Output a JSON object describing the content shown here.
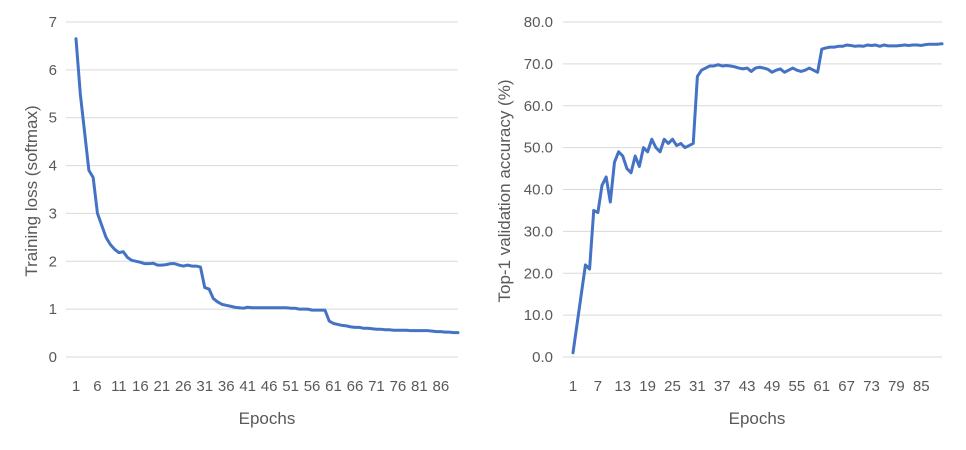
{
  "chart_data": [
    {
      "type": "line",
      "title": "",
      "xlabel": "Epochs",
      "ylabel": "Training loss (softmax)",
      "ylim": [
        0,
        7
      ],
      "yticks": [
        "0",
        "1",
        "2",
        "3",
        "4",
        "5",
        "6",
        "7"
      ],
      "xticks": [
        "1",
        "6",
        "11",
        "16",
        "21",
        "26",
        "31",
        "36",
        "41",
        "46",
        "51",
        "56",
        "61",
        "66",
        "71",
        "76",
        "81",
        "86"
      ],
      "grid": true,
      "series_color": "#4472c4",
      "x": [
        1,
        2,
        3,
        4,
        5,
        6,
        7,
        8,
        9,
        10,
        11,
        12,
        13,
        14,
        15,
        16,
        17,
        18,
        19,
        20,
        21,
        22,
        23,
        24,
        25,
        26,
        27,
        28,
        29,
        30,
        31,
        32,
        33,
        34,
        35,
        36,
        37,
        38,
        39,
        40,
        41,
        42,
        43,
        44,
        45,
        46,
        47,
        48,
        49,
        50,
        51,
        52,
        53,
        54,
        55,
        56,
        57,
        58,
        59,
        60,
        61,
        62,
        63,
        64,
        65,
        66,
        67,
        68,
        69,
        70,
        71,
        72,
        73,
        74,
        75,
        76,
        77,
        78,
        79,
        80,
        81,
        82,
        83,
        84,
        85,
        86,
        87,
        88,
        89,
        90
      ],
      "values": [
        6.65,
        5.5,
        4.7,
        3.9,
        3.75,
        3.0,
        2.75,
        2.5,
        2.35,
        2.25,
        2.18,
        2.2,
        2.08,
        2.02,
        2.0,
        1.98,
        1.95,
        1.95,
        1.96,
        1.92,
        1.92,
        1.93,
        1.95,
        1.95,
        1.92,
        1.9,
        1.92,
        1.9,
        1.9,
        1.88,
        1.45,
        1.42,
        1.22,
        1.15,
        1.1,
        1.08,
        1.06,
        1.04,
        1.03,
        1.02,
        1.04,
        1.03,
        1.03,
        1.03,
        1.03,
        1.03,
        1.03,
        1.03,
        1.03,
        1.03,
        1.02,
        1.02,
        1.0,
        1.0,
        1.0,
        0.98,
        0.98,
        0.98,
        0.98,
        0.75,
        0.7,
        0.68,
        0.66,
        0.65,
        0.63,
        0.62,
        0.62,
        0.6,
        0.6,
        0.59,
        0.58,
        0.58,
        0.57,
        0.57,
        0.56,
        0.56,
        0.56,
        0.56,
        0.55,
        0.55,
        0.55,
        0.55,
        0.55,
        0.54,
        0.53,
        0.53,
        0.52,
        0.52,
        0.51,
        0.51
      ]
    },
    {
      "type": "line",
      "title": "",
      "xlabel": "Epochs",
      "ylabel": "Top-1 validation accuracy (%)",
      "ylim": [
        0,
        80
      ],
      "yticks": [
        "0.0",
        "10.0",
        "20.0",
        "30.0",
        "40.0",
        "50.0",
        "60.0",
        "70.0",
        "80.0"
      ],
      "xticks": [
        "1",
        "7",
        "13",
        "19",
        "25",
        "31",
        "37",
        "43",
        "49",
        "55",
        "61",
        "67",
        "73",
        "79",
        "85"
      ],
      "grid": true,
      "series_color": "#4472c4",
      "x": [
        1,
        2,
        3,
        4,
        5,
        6,
        7,
        8,
        9,
        10,
        11,
        12,
        13,
        14,
        15,
        16,
        17,
        18,
        19,
        20,
        21,
        22,
        23,
        24,
        25,
        26,
        27,
        28,
        29,
        30,
        31,
        32,
        33,
        34,
        35,
        36,
        37,
        38,
        39,
        40,
        41,
        42,
        43,
        44,
        45,
        46,
        47,
        48,
        49,
        50,
        51,
        52,
        53,
        54,
        55,
        56,
        57,
        58,
        59,
        60,
        61,
        62,
        63,
        64,
        65,
        66,
        67,
        68,
        69,
        70,
        71,
        72,
        73,
        74,
        75,
        76,
        77,
        78,
        79,
        80,
        81,
        82,
        83,
        84,
        85,
        86,
        87,
        88,
        89,
        90
      ],
      "values": [
        1.0,
        8.0,
        15.0,
        22.0,
        21.0,
        35.0,
        34.5,
        41.0,
        43.0,
        37.0,
        46.5,
        49.0,
        48.0,
        45.0,
        44.0,
        48.0,
        45.5,
        50.0,
        49.0,
        52.0,
        50.0,
        49.0,
        52.0,
        51.0,
        52.0,
        50.5,
        51.0,
        50.0,
        50.5,
        51.0,
        67.0,
        68.5,
        69.0,
        69.5,
        69.5,
        69.8,
        69.5,
        69.6,
        69.5,
        69.3,
        69.0,
        68.8,
        69.0,
        68.2,
        69.0,
        69.2,
        69.0,
        68.7,
        68.0,
        68.5,
        68.8,
        68.0,
        68.5,
        69.0,
        68.5,
        68.2,
        68.5,
        69.0,
        68.5,
        68.0,
        73.5,
        73.8,
        74.0,
        74.0,
        74.2,
        74.2,
        74.5,
        74.4,
        74.2,
        74.3,
        74.2,
        74.5,
        74.4,
        74.5,
        74.2,
        74.5,
        74.3,
        74.3,
        74.3,
        74.4,
        74.5,
        74.4,
        74.5,
        74.5,
        74.4,
        74.6,
        74.7,
        74.7,
        74.7,
        74.8
      ]
    }
  ]
}
